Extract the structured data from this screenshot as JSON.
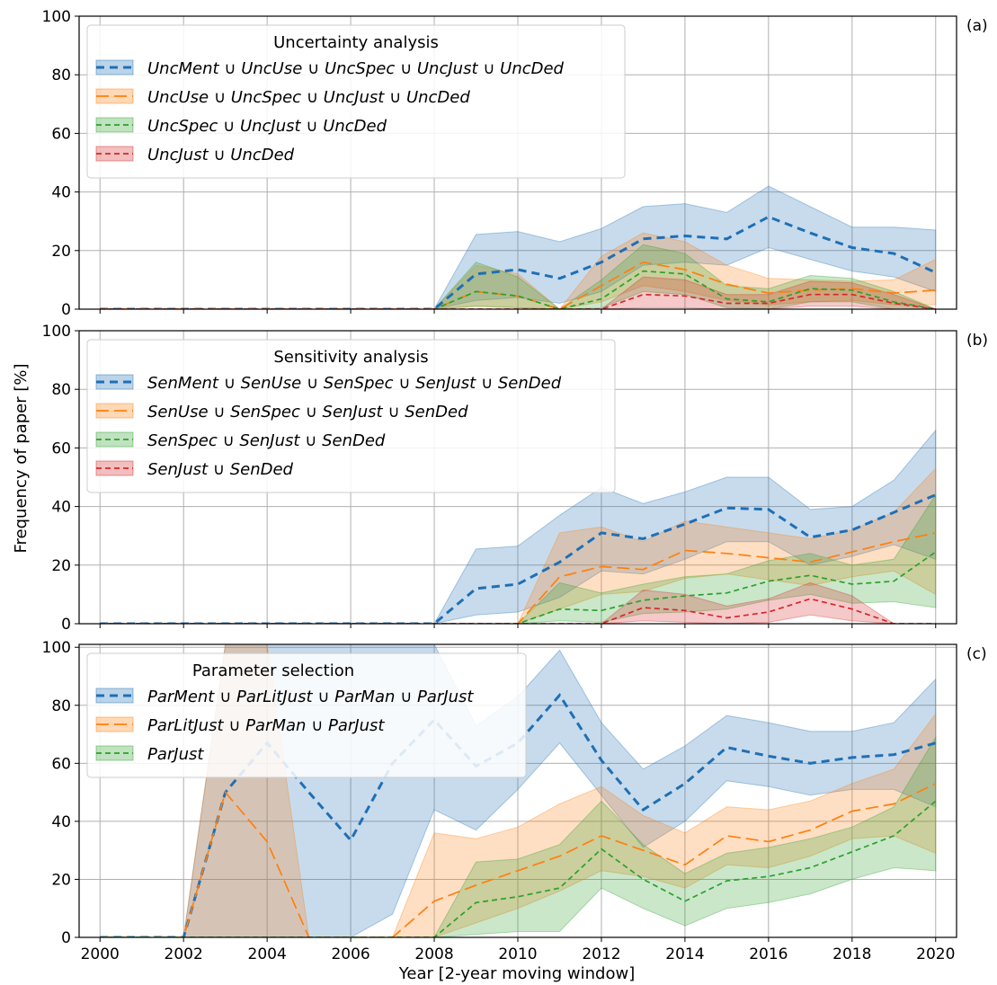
{
  "figure": {
    "ylabel": "Frequency of paper [%]",
    "xlabel": "Year [2-year moving window]",
    "colors": {
      "blue": "#1f6fb5",
      "orange": "#ff7f0e",
      "green": "#2ca02c",
      "red": "#d62728"
    }
  },
  "chart_data": [
    {
      "type": "line",
      "panel_label": "(a)",
      "legend_title": "Uncertainty analysis",
      "legend_position": "upper-left",
      "grid": true,
      "xlim": [
        1999.5,
        2020.5
      ],
      "ylim": [
        0,
        100
      ],
      "xticks": [
        "2000",
        "2002",
        "2004",
        "2006",
        "2008",
        "2010",
        "2012",
        "2014",
        "2016",
        "2018",
        "2020"
      ],
      "yticks": [
        "0",
        "20",
        "40",
        "60",
        "80",
        "100"
      ],
      "x": [
        2000,
        2001,
        2002,
        2003,
        2004,
        2005,
        2006,
        2007,
        2008,
        2009,
        2010,
        2011,
        2012,
        2013,
        2014,
        2015,
        2016,
        2017,
        2018,
        2019,
        2020
      ],
      "series": [
        {
          "name": "UncMent ∪ UncUse ∪ UncSpec ∪ UncJust ∪ UncDed",
          "color": "blue",
          "style": "bold",
          "values": [
            0,
            0,
            0,
            0,
            0,
            0,
            0,
            0,
            0,
            12,
            13.5,
            10.5,
            16,
            24,
            25,
            24,
            31.5,
            26,
            21,
            19,
            12.5
          ],
          "lower": [
            0,
            0,
            0,
            0,
            0,
            0,
            0,
            0,
            0,
            3,
            4,
            2,
            6,
            15,
            16,
            15,
            21,
            17,
            13,
            11,
            6
          ],
          "upper": [
            0,
            0,
            0,
            0,
            0,
            0,
            0,
            0,
            0,
            25.5,
            26.5,
            23,
            27.5,
            35,
            36,
            33,
            42,
            35,
            28,
            28,
            27
          ]
        },
        {
          "name": "UncUse ∪ UncSpec ∪ UncJust ∪ UncDed",
          "color": "orange",
          "style": "long",
          "values": [
            0,
            0,
            0,
            0,
            0,
            0,
            0,
            0,
            0,
            6,
            4.5,
            0,
            8,
            16,
            13.5,
            8.5,
            5.5,
            6.5,
            7,
            5.5,
            6.5
          ],
          "lower": [
            0,
            0,
            0,
            0,
            0,
            0,
            0,
            0,
            0,
            1,
            0.5,
            0,
            2.5,
            8,
            6,
            3,
            1.5,
            2.5,
            3,
            1.5,
            1.5
          ],
          "upper": [
            0,
            0,
            0,
            0,
            0,
            0,
            0,
            0,
            0,
            15,
            12,
            0,
            18,
            26,
            23,
            15,
            10.5,
            10,
            9.5,
            10,
            17
          ]
        },
        {
          "name": "UncSpec ∪ UncJust ∪ UncDed",
          "color": "green",
          "style": "short",
          "values": [
            0,
            0,
            0,
            0,
            0,
            0,
            0,
            0,
            0,
            6,
            4.5,
            0,
            3.5,
            13,
            12,
            3.5,
            2.5,
            7,
            6.5,
            2.5,
            0
          ],
          "lower": [
            0,
            0,
            0,
            0,
            0,
            0,
            0,
            0,
            0,
            1,
            0.5,
            0,
            0.5,
            6,
            5,
            0.5,
            0,
            2.5,
            2.5,
            0,
            0
          ],
          "upper": [
            0,
            0,
            0,
            0,
            0,
            0,
            0,
            0,
            0,
            16,
            11,
            0,
            10,
            22,
            19,
            8,
            7,
            11.5,
            10.5,
            6,
            0
          ]
        },
        {
          "name": "UncJust ∪ UncDed",
          "color": "red",
          "style": "short",
          "values": [
            0,
            0,
            0,
            0,
            0,
            0,
            0,
            0,
            0,
            0,
            0,
            0,
            0,
            5,
            4.5,
            2,
            2,
            5,
            5,
            2,
            0
          ],
          "lower": [
            0,
            0,
            0,
            0,
            0,
            0,
            0,
            0,
            0,
            0,
            0,
            0,
            0,
            0.5,
            0.5,
            0,
            0,
            1,
            1,
            0,
            0
          ],
          "upper": [
            0,
            0,
            0,
            0,
            0,
            0,
            0,
            0,
            0,
            0,
            0,
            0,
            0,
            11,
            10,
            5,
            5,
            9.5,
            9,
            5,
            0
          ]
        }
      ]
    },
    {
      "type": "line",
      "panel_label": "(b)",
      "legend_title": "Sensitivity analysis",
      "legend_position": "upper-left",
      "grid": true,
      "xlim": [
        1999.5,
        2020.5
      ],
      "ylim": [
        0,
        100
      ],
      "xticks": [
        "2000",
        "2002",
        "2004",
        "2006",
        "2008",
        "2010",
        "2012",
        "2014",
        "2016",
        "2018",
        "2020"
      ],
      "yticks": [
        "0",
        "20",
        "40",
        "60",
        "80",
        "100"
      ],
      "x": [
        2000,
        2001,
        2002,
        2003,
        2004,
        2005,
        2006,
        2007,
        2008,
        2009,
        2010,
        2011,
        2012,
        2013,
        2014,
        2015,
        2016,
        2017,
        2018,
        2019,
        2020
      ],
      "series": [
        {
          "name": "SenMent ∪ SenUse ∪ SenSpec ∪ SenJust ∪ SenDed",
          "color": "blue",
          "style": "bold",
          "values": [
            0,
            0,
            0,
            0,
            0,
            0,
            0,
            0,
            0,
            12,
            13.5,
            21,
            31,
            29,
            34,
            39.5,
            39,
            29.5,
            32,
            38,
            44
          ],
          "lower": [
            0,
            0,
            0,
            0,
            0,
            0,
            0,
            0,
            0,
            3,
            4,
            9,
            18,
            17,
            22,
            28,
            28,
            20,
            23,
            27,
            22
          ],
          "upper": [
            0,
            0,
            0,
            0,
            0,
            0,
            0,
            0,
            0,
            25.5,
            26.5,
            37,
            46.5,
            41,
            45,
            50,
            50,
            39,
            40,
            49,
            66
          ]
        },
        {
          "name": "SenUse ∪ SenSpec ∪ SenJust ∪ SenDed",
          "color": "orange",
          "style": "long",
          "values": [
            0,
            0,
            0,
            0,
            0,
            0,
            0,
            0,
            0,
            0,
            0,
            16,
            19.5,
            18.5,
            25,
            24,
            22.5,
            21,
            24.5,
            28,
            31
          ],
          "lower": [
            0,
            0,
            0,
            0,
            0,
            0,
            0,
            0,
            0,
            0,
            0,
            5,
            10,
            11,
            15.5,
            17,
            15,
            13,
            16,
            18,
            10
          ],
          "upper": [
            0,
            0,
            0,
            0,
            0,
            0,
            0,
            0,
            0,
            0,
            0,
            31,
            33,
            28,
            35,
            33,
            31,
            29,
            32,
            38,
            53
          ]
        },
        {
          "name": "SenSpec ∪ SenJust ∪ SenDed",
          "color": "green",
          "style": "short",
          "values": [
            0,
            0,
            0,
            0,
            0,
            0,
            0,
            0,
            0,
            0,
            0,
            5,
            4.5,
            8,
            9.5,
            10.5,
            14.5,
            16.5,
            13.5,
            14.5,
            24.5
          ],
          "lower": [
            0,
            0,
            0,
            0,
            0,
            0,
            0,
            0,
            0,
            0,
            0,
            1,
            0.5,
            3.5,
            4,
            5,
            8,
            10,
            7,
            7.5,
            5.5
          ],
          "upper": [
            0,
            0,
            0,
            0,
            0,
            0,
            0,
            0,
            0,
            0,
            0,
            14,
            10.5,
            13.5,
            16,
            17,
            21.5,
            24,
            20,
            22,
            44
          ]
        },
        {
          "name": "SenJust ∪ SenDed",
          "color": "red",
          "style": "short",
          "values": [
            0,
            0,
            0,
            0,
            0,
            0,
            0,
            0,
            0,
            0,
            0,
            0,
            0,
            5.5,
            4.5,
            2,
            4,
            8.5,
            5,
            0,
            0
          ],
          "lower": [
            0,
            0,
            0,
            0,
            0,
            0,
            0,
            0,
            0,
            0,
            0,
            0,
            0,
            1,
            0.5,
            0,
            0.5,
            3,
            1,
            0,
            0
          ],
          "upper": [
            0,
            0,
            0,
            0,
            0,
            0,
            0,
            0,
            0,
            0,
            0,
            0,
            0,
            11.5,
            10,
            6,
            8.5,
            14,
            9.5,
            0,
            0
          ]
        }
      ]
    },
    {
      "type": "line",
      "panel_label": "(c)",
      "legend_title": "Parameter selection",
      "legend_position": "upper-left",
      "grid": true,
      "xlim": [
        1999.5,
        2020.5
      ],
      "ylim": [
        0,
        101
      ],
      "xticks": [
        "2000",
        "2002",
        "2004",
        "2006",
        "2008",
        "2010",
        "2012",
        "2014",
        "2016",
        "2018",
        "2020"
      ],
      "yticks": [
        "0",
        "20",
        "40",
        "60",
        "80",
        "100"
      ],
      "x": [
        2000,
        2001,
        2002,
        2003,
        2004,
        2005,
        2006,
        2007,
        2008,
        2009,
        2010,
        2011,
        2012,
        2013,
        2014,
        2015,
        2016,
        2017,
        2018,
        2019,
        2020
      ],
      "series": [
        {
          "name": "ParMent ∪ ParLitJust ∪ ParMan ∪ ParJust",
          "color": "blue",
          "style": "bold",
          "values": [
            0,
            0,
            0,
            50,
            67,
            50,
            33.5,
            60,
            75,
            59,
            67,
            83.5,
            61,
            44,
            53,
            65.5,
            62.5,
            60,
            62,
            63,
            67
          ],
          "lower": [
            0,
            0,
            0,
            0,
            0,
            0,
            0,
            8,
            44,
            37,
            51,
            67,
            49,
            31,
            40,
            54,
            52,
            49,
            51,
            51,
            45
          ],
          "upper": [
            0,
            0,
            0,
            101,
            101,
            101,
            101,
            101,
            101,
            73,
            83,
            99,
            74,
            58,
            66,
            76.5,
            74,
            71,
            71,
            74,
            89
          ]
        },
        {
          "name": "ParLitJust ∪ ParMan ∪ ParJust",
          "color": "orange",
          "style": "long",
          "values": [
            0,
            0,
            0,
            50,
            33,
            0,
            0,
            0,
            12.5,
            18,
            23,
            28,
            35,
            30,
            25,
            35,
            33,
            37,
            43.5,
            46,
            53
          ],
          "lower": [
            0,
            0,
            0,
            0,
            0,
            0,
            0,
            0,
            0,
            5,
            10,
            16,
            23,
            21,
            17,
            25,
            24,
            28,
            34,
            35,
            29
          ],
          "upper": [
            0,
            0,
            0,
            101,
            101,
            0,
            0,
            0,
            36,
            34,
            38,
            46,
            52,
            42,
            36,
            45,
            44,
            47,
            53,
            58,
            77
          ]
        },
        {
          "name": "ParJust",
          "color": "green",
          "style": "short",
          "values": [
            0,
            0,
            0,
            0,
            0,
            0,
            0,
            0,
            0,
            12,
            14,
            17,
            30.5,
            20,
            12.5,
            19.5,
            21,
            24,
            29.5,
            35,
            47
          ],
          "lower": [
            0,
            0,
            0,
            0,
            0,
            0,
            0,
            0,
            0,
            1,
            2,
            2,
            17,
            10,
            4,
            10,
            12,
            15,
            20,
            24,
            23
          ],
          "upper": [
            0,
            0,
            0,
            0,
            0,
            0,
            0,
            0,
            0,
            26,
            27,
            32,
            47,
            32,
            22,
            29,
            31,
            34,
            38,
            45,
            69
          ]
        }
      ]
    }
  ]
}
